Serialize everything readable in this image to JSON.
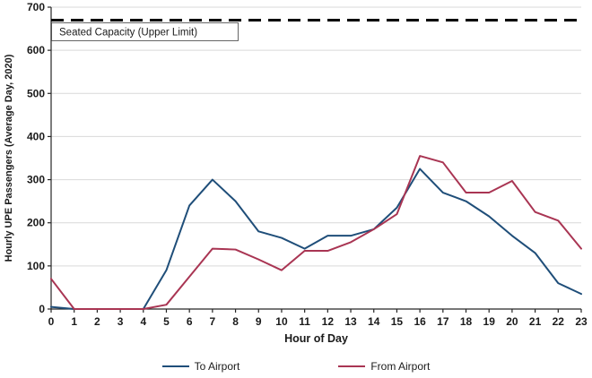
{
  "chart_data": {
    "type": "line",
    "title": "",
    "xlabel": "Hour of Day",
    "ylabel": "Hourly UPE Passengers (Average Day, 2020)",
    "x": [
      0,
      1,
      2,
      3,
      4,
      5,
      6,
      7,
      8,
      9,
      10,
      11,
      12,
      13,
      14,
      15,
      16,
      17,
      18,
      19,
      20,
      21,
      22,
      23
    ],
    "xlim": [
      0,
      23
    ],
    "ylim": [
      0,
      700
    ],
    "ytick_interval": 100,
    "grid": "horizontal",
    "legend_position": "bottom",
    "series": [
      {
        "name": "To Airport",
        "color": "#1F4E79",
        "values": [
          5,
          0,
          0,
          0,
          0,
          90,
          240,
          300,
          250,
          180,
          165,
          140,
          170,
          170,
          185,
          235,
          325,
          270,
          250,
          215,
          170,
          130,
          60,
          35
        ]
      },
      {
        "name": "From Airport",
        "color": "#A93553",
        "values": [
          70,
          0,
          0,
          0,
          0,
          10,
          75,
          140,
          138,
          115,
          90,
          135,
          135,
          155,
          185,
          220,
          355,
          340,
          270,
          270,
          297,
          225,
          205,
          140
        ]
      }
    ],
    "reference_line": {
      "label": "Seated Capacity (Upper Limit)",
      "value": 670,
      "color": "#000000",
      "style": "dashed"
    },
    "colors": {
      "gridline": "#D9D9D9",
      "axis": "#262626",
      "background": "#FFFFFF"
    }
  }
}
